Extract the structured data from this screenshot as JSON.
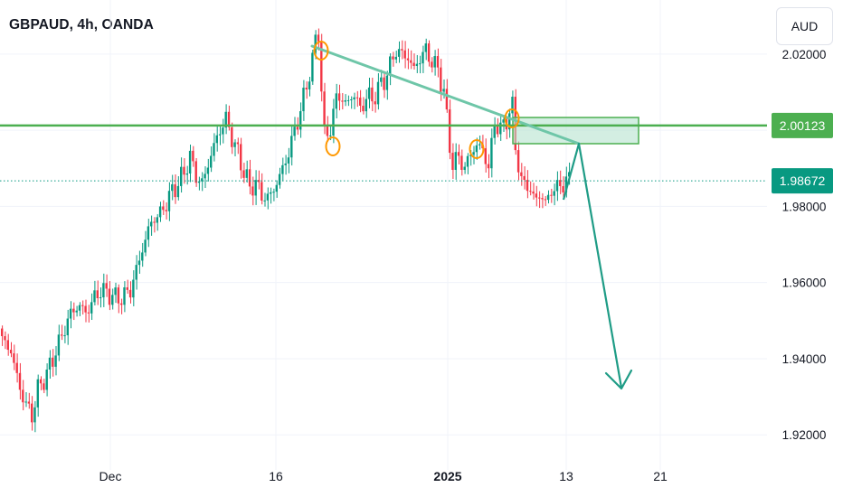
{
  "symbol": {
    "title": "GBPAUD, 4h, OANDA"
  },
  "currency_button": "AUD",
  "colors": {
    "up": "#089981",
    "down": "#f23645",
    "level": "#4caf50",
    "trendline": "#6ec6a8",
    "marker": "#ff9800",
    "zone": "#b6e3cf",
    "arrow": "#1f9c86",
    "price_badge": "#089981",
    "level_badge": "#4caf50"
  },
  "chart_data": {
    "type": "candlestick",
    "title": "GBPAUD, 4h, OANDA",
    "y_axis": {
      "range": [
        1.91,
        2.037
      ],
      "ticks": [
        {
          "value": 2.02,
          "label": "2.02000"
        },
        {
          "value": 2.0,
          "label": ""
        },
        {
          "value": 1.98,
          "label": "1.98000"
        },
        {
          "value": 1.96,
          "label": "1.96000"
        },
        {
          "value": 1.94,
          "label": "1.94000"
        },
        {
          "value": 1.92,
          "label": "1.92000"
        }
      ]
    },
    "x_axis": {
      "ticks": [
        {
          "label": "Dec",
          "bold": false
        },
        {
          "label": "16",
          "bold": false
        },
        {
          "label": "2025",
          "bold": true
        },
        {
          "label": "13",
          "bold": false
        },
        {
          "label": "21",
          "bold": false
        }
      ]
    },
    "horizontal_level": {
      "value": 2.00123,
      "label": "2.00123"
    },
    "last_price": {
      "value": 1.98672,
      "label": "1.98672"
    },
    "grid": true,
    "price_path": [
      [
        0,
        1.945
      ],
      [
        3,
        1.942
      ],
      [
        6,
        1.932
      ],
      [
        8,
        1.928
      ],
      [
        10,
        1.925
      ],
      [
        12,
        1.932
      ],
      [
        15,
        1.936
      ],
      [
        18,
        1.942
      ],
      [
        21,
        1.948
      ],
      [
        23,
        1.952
      ],
      [
        26,
        1.954
      ],
      [
        28,
        1.952
      ],
      [
        31,
        1.956
      ],
      [
        33,
        1.958
      ],
      [
        36,
        1.957
      ],
      [
        38,
        1.956
      ],
      [
        40,
        1.956
      ],
      [
        43,
        1.958
      ],
      [
        46,
        1.966
      ],
      [
        49,
        1.974
      ],
      [
        51,
        1.977
      ],
      [
        53,
        1.978
      ],
      [
        55,
        1.981
      ],
      [
        57,
        1.984
      ],
      [
        59,
        1.986
      ],
      [
        61,
        1.989
      ],
      [
        63,
        1.993
      ],
      [
        65,
        1.988
      ],
      [
        67,
        1.986
      ],
      [
        69,
        1.991
      ],
      [
        71,
        1.996
      ],
      [
        73,
        2.0
      ],
      [
        75,
        2.003
      ],
      [
        77,
        1.998
      ],
      [
        79,
        1.994
      ],
      [
        81,
        1.989
      ],
      [
        83,
        1.985
      ],
      [
        85,
        1.986
      ],
      [
        87,
        1.983
      ],
      [
        89,
        1.982
      ],
      [
        92,
        1.986
      ],
      [
        94,
        1.99
      ],
      [
        96,
        1.994
      ],
      [
        98,
        2.0
      ],
      [
        100,
        2.005
      ],
      [
        102,
        2.012
      ],
      [
        104,
        2.018
      ],
      [
        105,
        2.024
      ],
      [
        106,
        2.026
      ],
      [
        107,
        2.01
      ],
      [
        108,
        1.999
      ],
      [
        110,
        2.0
      ],
      [
        112,
        2.009
      ],
      [
        114,
        2.008
      ],
      [
        116,
        2.007
      ],
      [
        118,
        2.01
      ],
      [
        120,
        2.005
      ],
      [
        122,
        2.009
      ],
      [
        124,
        2.008
      ],
      [
        126,
        2.011
      ],
      [
        128,
        2.013
      ],
      [
        130,
        2.017
      ],
      [
        132,
        2.021
      ],
      [
        134,
        2.02
      ],
      [
        136,
        2.019
      ],
      [
        138,
        2.016
      ],
      [
        140,
        2.019
      ],
      [
        142,
        2.021
      ],
      [
        144,
        2.018
      ],
      [
        146,
        2.016
      ],
      [
        148,
        2.01
      ],
      [
        150,
        1.996
      ],
      [
        151,
        1.991
      ],
      [
        153,
        1.993
      ],
      [
        155,
        1.99
      ],
      [
        157,
        1.994
      ],
      [
        159,
        1.996
      ],
      [
        161,
        1.995
      ],
      [
        163,
        1.99
      ],
      [
        165,
        2.002
      ],
      [
        167,
        2.0
      ],
      [
        169,
        2.003
      ],
      [
        171,
        2.006
      ],
      [
        172,
        1.996
      ],
      [
        174,
        1.986
      ],
      [
        176,
        1.986
      ],
      [
        178,
        1.982
      ],
      [
        180,
        1.983
      ],
      [
        182,
        1.981
      ],
      [
        184,
        1.984
      ],
      [
        186,
        1.985
      ],
      [
        188,
        1.986
      ],
      [
        190,
        1.987
      ]
    ]
  }
}
